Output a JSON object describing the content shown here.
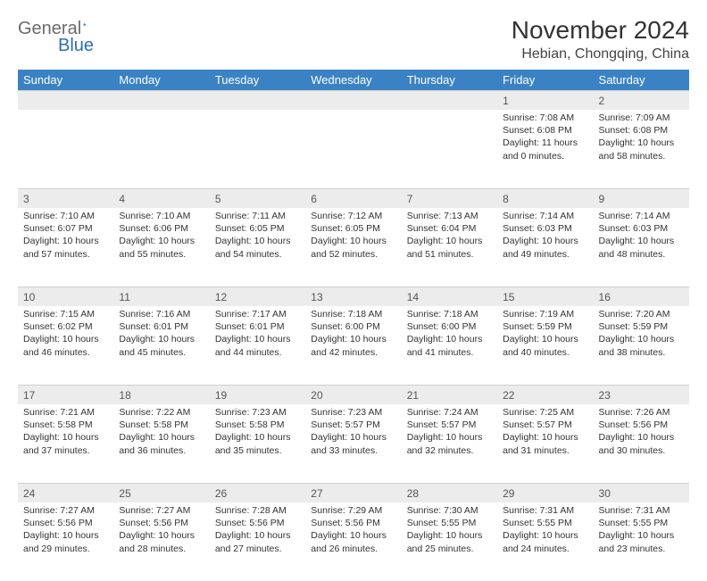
{
  "brand": {
    "text1": "General",
    "text2": "Blue"
  },
  "title": "November 2024",
  "location": "Hebian, Chongqing, China",
  "colors": {
    "header_bg": "#3b82c4",
    "header_fg": "#ffffff",
    "daynum_bg": "#ececec",
    "border": "#cfcfcf",
    "brand_gray": "#6a6a6a",
    "brand_blue": "#2c6fb3"
  },
  "dayNames": [
    "Sunday",
    "Monday",
    "Tuesday",
    "Wednesday",
    "Thursday",
    "Friday",
    "Saturday"
  ],
  "firstWeekday": 5,
  "daysInMonth": 30,
  "days": {
    "1": {
      "sunrise": "7:08 AM",
      "sunset": "6:08 PM",
      "daylight": "11 hours and 0 minutes."
    },
    "2": {
      "sunrise": "7:09 AM",
      "sunset": "6:08 PM",
      "daylight": "10 hours and 58 minutes."
    },
    "3": {
      "sunrise": "7:10 AM",
      "sunset": "6:07 PM",
      "daylight": "10 hours and 57 minutes."
    },
    "4": {
      "sunrise": "7:10 AM",
      "sunset": "6:06 PM",
      "daylight": "10 hours and 55 minutes."
    },
    "5": {
      "sunrise": "7:11 AM",
      "sunset": "6:05 PM",
      "daylight": "10 hours and 54 minutes."
    },
    "6": {
      "sunrise": "7:12 AM",
      "sunset": "6:05 PM",
      "daylight": "10 hours and 52 minutes."
    },
    "7": {
      "sunrise": "7:13 AM",
      "sunset": "6:04 PM",
      "daylight": "10 hours and 51 minutes."
    },
    "8": {
      "sunrise": "7:14 AM",
      "sunset": "6:03 PM",
      "daylight": "10 hours and 49 minutes."
    },
    "9": {
      "sunrise": "7:14 AM",
      "sunset": "6:03 PM",
      "daylight": "10 hours and 48 minutes."
    },
    "10": {
      "sunrise": "7:15 AM",
      "sunset": "6:02 PM",
      "daylight": "10 hours and 46 minutes."
    },
    "11": {
      "sunrise": "7:16 AM",
      "sunset": "6:01 PM",
      "daylight": "10 hours and 45 minutes."
    },
    "12": {
      "sunrise": "7:17 AM",
      "sunset": "6:01 PM",
      "daylight": "10 hours and 44 minutes."
    },
    "13": {
      "sunrise": "7:18 AM",
      "sunset": "6:00 PM",
      "daylight": "10 hours and 42 minutes."
    },
    "14": {
      "sunrise": "7:18 AM",
      "sunset": "6:00 PM",
      "daylight": "10 hours and 41 minutes."
    },
    "15": {
      "sunrise": "7:19 AM",
      "sunset": "5:59 PM",
      "daylight": "10 hours and 40 minutes."
    },
    "16": {
      "sunrise": "7:20 AM",
      "sunset": "5:59 PM",
      "daylight": "10 hours and 38 minutes."
    },
    "17": {
      "sunrise": "7:21 AM",
      "sunset": "5:58 PM",
      "daylight": "10 hours and 37 minutes."
    },
    "18": {
      "sunrise": "7:22 AM",
      "sunset": "5:58 PM",
      "daylight": "10 hours and 36 minutes."
    },
    "19": {
      "sunrise": "7:23 AM",
      "sunset": "5:58 PM",
      "daylight": "10 hours and 35 minutes."
    },
    "20": {
      "sunrise": "7:23 AM",
      "sunset": "5:57 PM",
      "daylight": "10 hours and 33 minutes."
    },
    "21": {
      "sunrise": "7:24 AM",
      "sunset": "5:57 PM",
      "daylight": "10 hours and 32 minutes."
    },
    "22": {
      "sunrise": "7:25 AM",
      "sunset": "5:57 PM",
      "daylight": "10 hours and 31 minutes."
    },
    "23": {
      "sunrise": "7:26 AM",
      "sunset": "5:56 PM",
      "daylight": "10 hours and 30 minutes."
    },
    "24": {
      "sunrise": "7:27 AM",
      "sunset": "5:56 PM",
      "daylight": "10 hours and 29 minutes."
    },
    "25": {
      "sunrise": "7:27 AM",
      "sunset": "5:56 PM",
      "daylight": "10 hours and 28 minutes."
    },
    "26": {
      "sunrise": "7:28 AM",
      "sunset": "5:56 PM",
      "daylight": "10 hours and 27 minutes."
    },
    "27": {
      "sunrise": "7:29 AM",
      "sunset": "5:56 PM",
      "daylight": "10 hours and 26 minutes."
    },
    "28": {
      "sunrise": "7:30 AM",
      "sunset": "5:55 PM",
      "daylight": "10 hours and 25 minutes."
    },
    "29": {
      "sunrise": "7:31 AM",
      "sunset": "5:55 PM",
      "daylight": "10 hours and 24 minutes."
    },
    "30": {
      "sunrise": "7:31 AM",
      "sunset": "5:55 PM",
      "daylight": "10 hours and 23 minutes."
    }
  },
  "labels": {
    "sunrise": "Sunrise:",
    "sunset": "Sunset:",
    "daylight": "Daylight:"
  }
}
